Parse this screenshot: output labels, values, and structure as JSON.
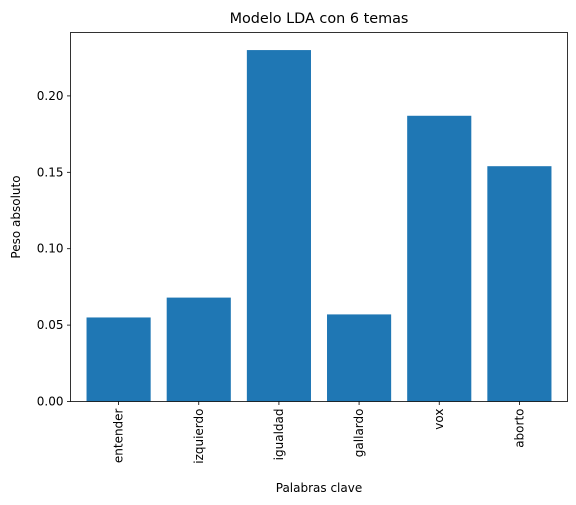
{
  "chart_data": {
    "type": "bar",
    "title": "Modelo LDA con 6 temas",
    "xlabel": "Palabras clave",
    "ylabel": "Peso absoluto",
    "categories": [
      "entender",
      "izquierdo",
      "igualdad",
      "gallardo",
      "vox",
      "aborto"
    ],
    "values": [
      0.055,
      0.068,
      0.23,
      0.057,
      0.187,
      0.154
    ],
    "ylim": [
      0,
      0.2415
    ],
    "yticks": [
      0.0,
      0.05,
      0.1,
      0.15,
      0.2
    ],
    "ytick_labels": [
      "0.00",
      "0.05",
      "0.10",
      "0.15",
      "0.20"
    ],
    "x_tick_rotation": "vertical",
    "grid": false,
    "bar_color": "#1f77b4"
  }
}
